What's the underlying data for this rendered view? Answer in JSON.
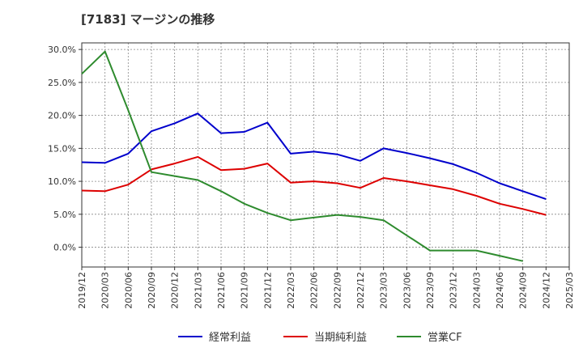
{
  "chart_data": {
    "type": "line",
    "title": "[7183]  マージンの推移",
    "x": [
      "2019/12",
      "2020/03",
      "2020/06",
      "2020/09",
      "2020/12",
      "2021/03",
      "2021/06",
      "2021/09",
      "2021/12",
      "2022/03",
      "2022/06",
      "2022/09",
      "2022/12",
      "2023/03",
      "2023/06",
      "2023/09",
      "2023/12",
      "2024/03",
      "2024/06",
      "2024/09",
      "2024/12",
      "2025/03"
    ],
    "ylim": [
      -3.0,
      31.0
    ],
    "yticks": [
      0,
      5,
      10,
      15,
      20,
      25,
      30
    ],
    "ytick_labels": [
      "0.0%",
      "5.0%",
      "10.0%",
      "15.0%",
      "20.0%",
      "25.0%",
      "30.0%"
    ],
    "grid": true,
    "legend_position": "bottom",
    "series": [
      {
        "name": "経常利益",
        "color": "#0000cc",
        "values": [
          12.9,
          12.8,
          14.2,
          17.6,
          18.8,
          20.3,
          17.3,
          17.5,
          18.9,
          14.2,
          14.5,
          14.1,
          13.1,
          15.0,
          14.3,
          13.5,
          12.6,
          11.3,
          9.7,
          8.5,
          7.3,
          null
        ]
      },
      {
        "name": "当期純利益",
        "color": "#dd0000",
        "values": [
          8.6,
          8.5,
          9.5,
          11.8,
          12.7,
          13.7,
          11.7,
          11.9,
          12.7,
          9.8,
          10.0,
          9.7,
          9.0,
          10.5,
          10.0,
          9.4,
          8.8,
          7.8,
          6.6,
          5.8,
          4.9,
          null
        ]
      },
      {
        "name": "営業CF",
        "color": "#2e8b2e",
        "values": [
          26.3,
          29.7,
          20.8,
          11.4,
          10.8,
          10.2,
          8.5,
          6.6,
          5.2,
          4.1,
          4.5,
          4.9,
          4.6,
          4.1,
          1.8,
          -0.5,
          -0.5,
          -0.5,
          -1.3,
          -2.1,
          null,
          null
        ]
      }
    ]
  }
}
